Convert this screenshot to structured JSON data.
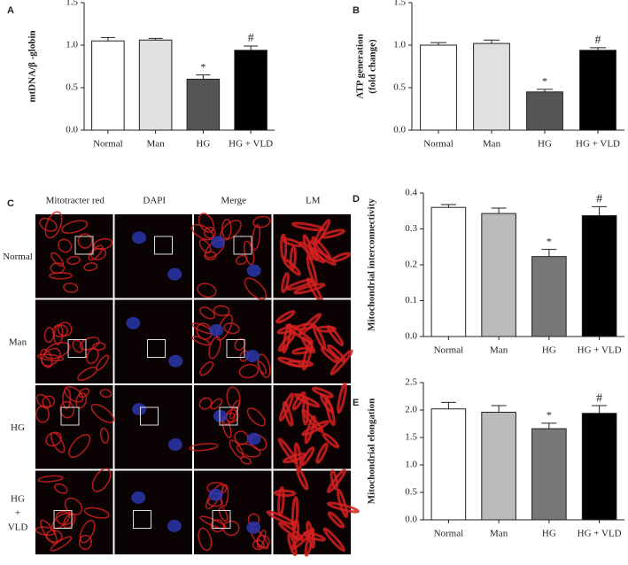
{
  "chart_data": [
    {
      "type": "bar",
      "label": "A",
      "ylabel": [
        "mtDNA/β -globin"
      ],
      "categories": [
        "Normal",
        "Man",
        "HG",
        "HG + VLD"
      ],
      "values": [
        1.05,
        1.06,
        0.6,
        0.94
      ],
      "errors": [
        0.04,
        0.02,
        0.05,
        0.05
      ],
      "annotations": [
        null,
        null,
        "*",
        "#"
      ],
      "colors": [
        "#ffffff",
        "#e0e0e0",
        "#555555",
        "#000000"
      ],
      "ylim": [
        0,
        1.5
      ],
      "yticks": [
        {
          "value": 0,
          "label": "0.0"
        },
        0.5,
        {
          "value": 1,
          "label": "1.0"
        },
        1.5
      ]
    },
    {
      "type": "bar",
      "label": "B",
      "ylabel": [
        "ATP generation",
        "(fold change)"
      ],
      "categories": [
        "Normal",
        "Man",
        "HG",
        "HG + VLD"
      ],
      "values": [
        1.0,
        1.02,
        0.45,
        0.94
      ],
      "errors": [
        0.03,
        0.04,
        0.03,
        0.03
      ],
      "annotations": [
        null,
        null,
        "*",
        "#"
      ],
      "colors": [
        "#ffffff",
        "#e0e0e0",
        "#555555",
        "#000000"
      ],
      "ylim": [
        0,
        1.5
      ],
      "yticks": [
        {
          "value": 0,
          "label": "0.0"
        },
        0.5,
        {
          "value": 1,
          "label": "1.0"
        },
        1.5
      ]
    },
    {
      "type": "bar",
      "label": "D",
      "ylabel": [
        "Mitochondrial interconnectivity"
      ],
      "categories": [
        "Normal",
        "Man",
        "HG",
        "HG + VLD"
      ],
      "values": [
        0.36,
        0.343,
        0.223,
        0.337
      ],
      "errors": [
        0.008,
        0.015,
        0.02,
        0.025
      ],
      "annotations": [
        null,
        null,
        "*",
        "#"
      ],
      "colors": [
        "#ffffff",
        "#bbbbbb",
        "#777777",
        "#000000"
      ],
      "ylim": [
        0,
        0.4
      ],
      "yticks": [
        {
          "value": 0,
          "label": "0.0"
        },
        0.1,
        0.2,
        0.3,
        0.4
      ]
    },
    {
      "type": "bar",
      "label": "E",
      "ylabel": [
        "Mitochondrial elongation"
      ],
      "categories": [
        "Normal",
        "Man",
        "HG",
        "HG + VLD"
      ],
      "values": [
        2.02,
        1.96,
        1.66,
        1.94
      ],
      "errors": [
        0.12,
        0.12,
        0.1,
        0.14
      ],
      "annotations": [
        null,
        null,
        "*",
        "#"
      ],
      "colors": [
        "#ffffff",
        "#bbbbbb",
        "#777777",
        "#000000"
      ],
      "ylim": [
        0,
        2.5
      ],
      "yticks": [
        {
          "value": 0,
          "label": "0.0"
        },
        0.5,
        {
          "value": 1,
          "label": "1.0"
        },
        1.5,
        {
          "value": 2,
          "label": "2.0"
        },
        2.5
      ]
    }
  ],
  "image_panel": {
    "label": "C",
    "columns": [
      "Mitotracter red",
      "DAPI",
      "Merge",
      "LM"
    ],
    "rows": [
      [
        "Normal"
      ],
      [
        "Man"
      ],
      [
        "HG"
      ],
      [
        "HG",
        "+",
        "VLD"
      ]
    ]
  }
}
